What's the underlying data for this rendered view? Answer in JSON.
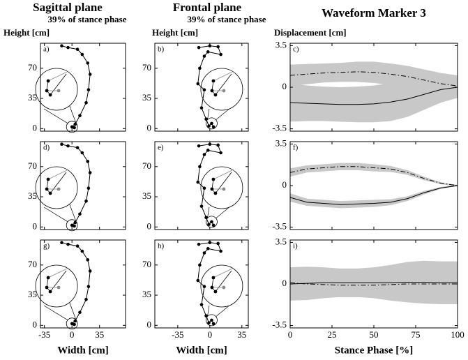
{
  "chart_data": [
    {
      "type": "stick",
      "title": "Sagittal plane",
      "subtitle": "39% of stance phase",
      "ylabel": "Height [cm]",
      "panel_label": "a)",
      "x": [
        -13,
        -5,
        7,
        13,
        20,
        23,
        21,
        18,
        10,
        4,
        0,
        3
      ],
      "y": [
        96,
        94,
        92,
        86,
        76,
        63,
        45,
        30,
        15,
        5,
        2,
        1
      ],
      "xlim": [
        -40,
        68
      ],
      "ylim": [
        -3,
        99
      ],
      "xticks": [
        -35,
        0,
        35
      ],
      "yticks": [
        0,
        35,
        70
      ],
      "color": "#000000"
    },
    {
      "type": "stick",
      "title": "Frontal plane",
      "subtitle": "39% of stance phase",
      "ylabel": "Height [cm]",
      "panel_label": "b)",
      "x": [
        -12,
        0,
        9,
        12,
        -2,
        -6,
        -11,
        -13,
        -6,
        -9,
        -4,
        -1,
        2,
        4
      ],
      "y": [
        94,
        96,
        95,
        86,
        89,
        84,
        70,
        52,
        45,
        24,
        11,
        3,
        6,
        2
      ],
      "xlim": [
        -60,
        42
      ],
      "ylim": [
        -3,
        99
      ],
      "xticks": [
        -35,
        0,
        35
      ],
      "yticks": [
        0,
        35,
        70
      ],
      "color": "#000000"
    },
    {
      "type": "band",
      "title": "Waveform Marker 3",
      "ylabel": "Displacement [cm]",
      "panel_label": "c)",
      "x": [
        0,
        10,
        20,
        30,
        40,
        50,
        60,
        70,
        80,
        90,
        100
      ],
      "series": [
        {
          "style": "solid",
          "color": "#000000",
          "band_color": "#c8c8c8",
          "values": [
            -1.3,
            -1.35,
            -1.4,
            -1.45,
            -1.45,
            -1.4,
            -1.25,
            -1.0,
            -0.6,
            -0.2,
            0
          ],
          "sd": [
            1.6,
            1.5,
            1.45,
            1.45,
            1.5,
            1.55,
            1.6,
            1.5,
            1.3,
            1.1,
            0.9
          ]
        },
        {
          "style": "dashdot",
          "color": "#000000",
          "band_color": "#c8c8c8",
          "values": [
            1.0,
            1.1,
            1.2,
            1.25,
            1.3,
            1.25,
            1.1,
            0.9,
            0.6,
            0.3,
            0.1
          ],
          "sd": [
            0.9,
            0.85,
            0.8,
            0.8,
            0.85,
            0.9,
            0.9,
            0.9,
            0.9,
            0.9,
            0.9
          ]
        }
      ],
      "xlim": [
        0,
        100
      ],
      "ylim": [
        -3.7,
        3.7
      ],
      "xticks": [
        0,
        25,
        50,
        75,
        100
      ],
      "yticks": [
        -3.5,
        0,
        3.5
      ]
    },
    {
      "type": "stick",
      "panel_label": "d)",
      "x": [
        -13,
        -5,
        7,
        13,
        20,
        23,
        21,
        18,
        10,
        4,
        0,
        3
      ],
      "y": [
        96,
        94,
        92,
        86,
        76,
        63,
        45,
        30,
        15,
        5,
        2,
        1
      ],
      "xlim": [
        -40,
        68
      ],
      "ylim": [
        -3,
        99
      ],
      "xticks": [
        -35,
        0,
        35
      ],
      "yticks": [
        0,
        35,
        70
      ],
      "color": "#000000"
    },
    {
      "type": "stick",
      "panel_label": "e)",
      "x": [
        -12,
        0,
        9,
        12,
        -2,
        -6,
        -11,
        -13,
        -6,
        -9,
        -4,
        -1,
        2,
        4
      ],
      "y": [
        94,
        96,
        95,
        86,
        89,
        84,
        70,
        52,
        45,
        24,
        11,
        3,
        6,
        2
      ],
      "xlim": [
        -60,
        42
      ],
      "ylim": [
        -3,
        99
      ],
      "xticks": [
        -35,
        0,
        35
      ],
      "yticks": [
        0,
        35,
        70
      ],
      "color": "#000000"
    },
    {
      "type": "band",
      "panel_label": "f)",
      "x": [
        0,
        10,
        20,
        30,
        40,
        50,
        60,
        70,
        80,
        90,
        100
      ],
      "series": [
        {
          "style": "solid",
          "color": "#000000",
          "band_color": "#c8c8c8",
          "values": [
            -1.0,
            -1.4,
            -1.5,
            -1.6,
            -1.55,
            -1.5,
            -1.4,
            -1.1,
            -0.6,
            -0.2,
            0
          ],
          "sd": [
            0.35,
            0.3,
            0.3,
            0.3,
            0.3,
            0.3,
            0.25,
            0.2,
            0.15,
            0.08,
            0.05
          ]
        },
        {
          "style": "dashdot",
          "color": "#000000",
          "band_color": "#c8c8c8",
          "values": [
            1.1,
            1.4,
            1.5,
            1.6,
            1.6,
            1.5,
            1.4,
            1.1,
            0.6,
            0.2,
            0
          ],
          "sd": [
            0.35,
            0.3,
            0.3,
            0.3,
            0.3,
            0.3,
            0.25,
            0.2,
            0.15,
            0.08,
            0.05
          ]
        }
      ],
      "xlim": [
        0,
        100
      ],
      "ylim": [
        -3.7,
        3.7
      ],
      "xticks": [
        0,
        25,
        50,
        75,
        100
      ],
      "yticks": [
        -3.5,
        0,
        3.5
      ]
    },
    {
      "type": "stick",
      "panel_label": "g)",
      "xlabel": "Width [cm]",
      "x": [
        -13,
        -5,
        7,
        13,
        20,
        23,
        21,
        18,
        10,
        4,
        0,
        3
      ],
      "y": [
        96,
        94,
        92,
        86,
        76,
        63,
        45,
        30,
        15,
        5,
        2,
        1
      ],
      "xlim": [
        -40,
        68
      ],
      "ylim": [
        -3,
        99
      ],
      "xticks": [
        -35,
        0,
        35
      ],
      "yticks": [
        0,
        35,
        70
      ],
      "color": "#000000"
    },
    {
      "type": "stick",
      "panel_label": "h)",
      "xlabel": "Width [cm]",
      "x": [
        -12,
        0,
        9,
        12,
        -2,
        -6,
        -11,
        -13,
        -6,
        -9,
        -4,
        -1,
        2,
        4
      ],
      "y": [
        94,
        96,
        95,
        86,
        89,
        84,
        70,
        52,
        45,
        24,
        11,
        3,
        6,
        2
      ],
      "xlim": [
        -60,
        42
      ],
      "ylim": [
        -3,
        99
      ],
      "xticks": [
        -35,
        0,
        35
      ],
      "yticks": [
        0,
        35,
        70
      ],
      "color": "#000000"
    },
    {
      "type": "band",
      "panel_label": "i)",
      "xlabel": "Stance Phase [%]",
      "x": [
        0,
        10,
        20,
        30,
        40,
        50,
        60,
        70,
        80,
        90,
        100
      ],
      "series": [
        {
          "style": "solid",
          "color": "#000000",
          "band_color": "#c8c8c8",
          "values": [
            0,
            0.05,
            0.1,
            0.1,
            0.1,
            0.1,
            0.1,
            0.15,
            0.15,
            0.1,
            0.1
          ],
          "sd": [
            1.4,
            1.4,
            1.3,
            1.2,
            1.2,
            1.3,
            1.5,
            1.7,
            1.8,
            1.8,
            1.8
          ]
        },
        {
          "style": "dashdot",
          "color": "#000000",
          "band_color": "#c8c8c8",
          "values": [
            0.1,
            0,
            -0.05,
            -0.1,
            -0.1,
            -0.1,
            -0.05,
            0,
            0,
            0,
            0
          ],
          "sd": [
            1.0,
            1.0,
            1.0,
            1.0,
            1.0,
            1.0,
            1.1,
            1.2,
            1.3,
            1.3,
            1.3
          ]
        }
      ],
      "xlim": [
        0,
        100
      ],
      "ylim": [
        -3.7,
        3.7
      ],
      "xticks": [
        0,
        25,
        50,
        75,
        100
      ],
      "yticks": [
        -3.5,
        0,
        3.5
      ]
    }
  ]
}
